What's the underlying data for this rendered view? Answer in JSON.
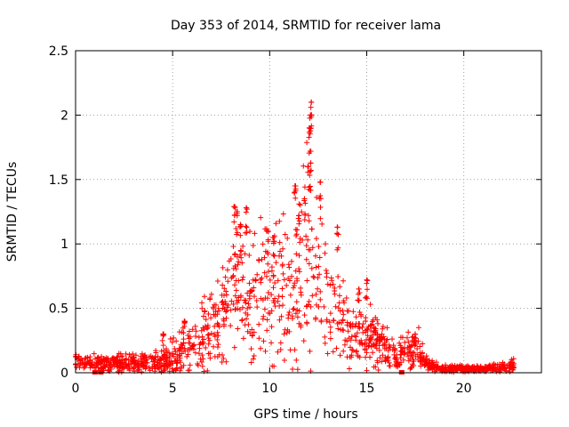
{
  "chart_data": {
    "type": "scatter",
    "title": "Day 353 of 2014, SRMTID for receiver lama",
    "xlabel": "GPS time / hours",
    "ylabel": "SRMTID / TECUs",
    "xlim": [
      0,
      24
    ],
    "ylim": [
      0,
      2.5
    ],
    "xticks": [
      0,
      5,
      10,
      15,
      20
    ],
    "yticks": [
      0,
      0.5,
      1,
      1.5,
      2,
      2.5
    ],
    "grid": true,
    "series": [
      {
        "name": "SRMTID",
        "color": "#ff0000",
        "marker": "plus",
        "profile": {
          "x": [
            0,
            1,
            2,
            3,
            4,
            4.5,
            5,
            5.5,
            6,
            6.5,
            7,
            7.5,
            8,
            8.5,
            9,
            9.5,
            10,
            10.5,
            11,
            11.5,
            12,
            12.5,
            13,
            13.5,
            14,
            14.5,
            15,
            15.5,
            16,
            16.5,
            17,
            17.5,
            18,
            18.5,
            19,
            20,
            21,
            22,
            22.6
          ],
          "y_typical": [
            0.1,
            0.07,
            0.08,
            0.08,
            0.08,
            0.1,
            0.12,
            0.15,
            0.2,
            0.28,
            0.38,
            0.45,
            0.55,
            0.6,
            0.55,
            0.6,
            0.65,
            0.6,
            0.6,
            0.65,
            0.85,
            0.7,
            0.55,
            0.45,
            0.35,
            0.3,
            0.28,
            0.25,
            0.2,
            0.12,
            0.15,
            0.2,
            0.08,
            0.05,
            0.03,
            0.03,
            0.03,
            0.04,
            0.05
          ],
          "y_spread": [
            0.05,
            0.05,
            0.06,
            0.06,
            0.06,
            0.08,
            0.1,
            0.12,
            0.15,
            0.2,
            0.25,
            0.3,
            0.35,
            0.35,
            0.35,
            0.4,
            0.4,
            0.45,
            0.45,
            0.45,
            0.6,
            0.45,
            0.35,
            0.3,
            0.25,
            0.2,
            0.2,
            0.18,
            0.15,
            0.08,
            0.12,
            0.15,
            0.05,
            0.03,
            0.02,
            0.02,
            0.02,
            0.03,
            0.04
          ]
        },
        "peaks": [
          {
            "x": 8.2,
            "y": 1.29
          },
          {
            "x": 8.3,
            "y": 1.25
          },
          {
            "x": 8.5,
            "y": 1.15
          },
          {
            "x": 8.8,
            "y": 1.28
          },
          {
            "x": 9.9,
            "y": 1.1
          },
          {
            "x": 10.2,
            "y": 1.05
          },
          {
            "x": 11.3,
            "y": 1.45
          },
          {
            "x": 11.5,
            "y": 1.22
          },
          {
            "x": 11.8,
            "y": 1.35
          },
          {
            "x": 12.0,
            "y": 1.6
          },
          {
            "x": 12.05,
            "y": 1.9
          },
          {
            "x": 12.1,
            "y": 2.0
          },
          {
            "x": 12.15,
            "y": 2.1
          },
          {
            "x": 12.12,
            "y": 1.72
          },
          {
            "x": 12.6,
            "y": 1.48
          },
          {
            "x": 13.5,
            "y": 1.13
          },
          {
            "x": 14.6,
            "y": 0.65
          },
          {
            "x": 15.0,
            "y": 0.72
          },
          {
            "x": 17.5,
            "y": 0.3
          },
          {
            "x": 5.6,
            "y": 0.4
          },
          {
            "x": 4.5,
            "y": 0.3
          }
        ],
        "low_markers": [
          {
            "x": 1.0,
            "y": 0.0
          },
          {
            "x": 1.3,
            "y": 0.0
          },
          {
            "x": 16.8,
            "y": 0.0
          }
        ]
      }
    ]
  }
}
